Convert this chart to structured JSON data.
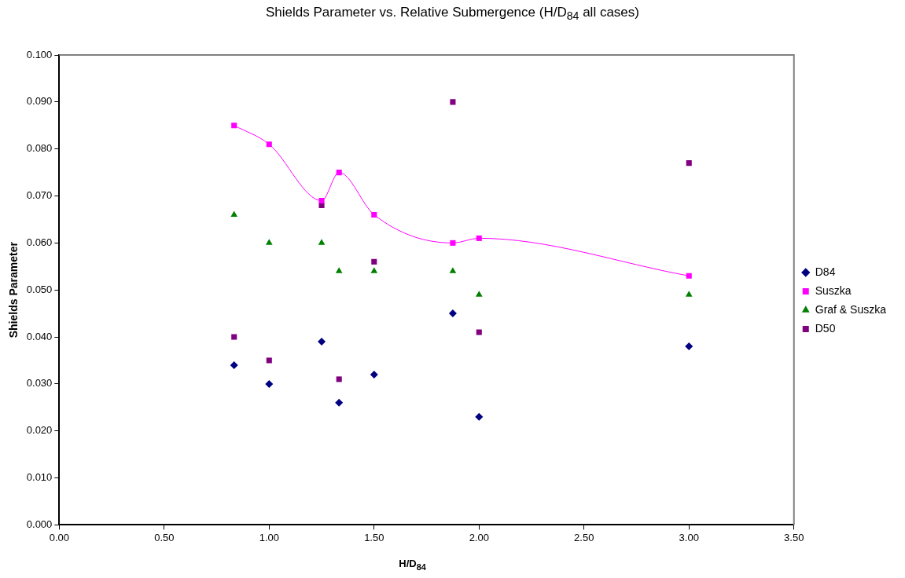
{
  "chart_data": {
    "type": "scatter",
    "title": "Shields Parameter vs. Relative Submergence (H/D$_{84}$ all cases)",
    "xlabel": "H/D$_{84}$",
    "ylabel": "Shields Parameter",
    "x": [
      0.833,
      1.0,
      1.25,
      1.333,
      1.5,
      1.875,
      2.0,
      3.0
    ],
    "series": [
      {
        "name": "D84",
        "marker": "diamond",
        "color": "#000080",
        "values": [
          0.034,
          0.03,
          0.039,
          0.026,
          0.032,
          0.045,
          0.023,
          0.038
        ]
      },
      {
        "name": "Suszka",
        "type": "line",
        "marker": "square",
        "color": "#ff00ff",
        "values": [
          0.085,
          0.081,
          0.069,
          0.075,
          0.066,
          0.06,
          0.061,
          0.053
        ]
      },
      {
        "name": "Graf & Suszka",
        "marker": "triangle",
        "color": "#008000",
        "values": [
          0.066,
          0.06,
          0.06,
          0.054,
          0.054,
          0.054,
          0.049,
          0.049
        ]
      },
      {
        "name": "D50",
        "marker": "square",
        "color": "#800080",
        "values": [
          0.04,
          0.035,
          0.068,
          0.031,
          0.056,
          0.09,
          0.041,
          0.077
        ]
      }
    ],
    "xlim": [
      0,
      3.5
    ],
    "xticks": [
      {
        "value": 0,
        "label": "0.00"
      },
      {
        "value": 0.5,
        "label": "0.50"
      },
      {
        "value": 1,
        "label": "1.00"
      },
      {
        "value": 1.5,
        "label": "1.50"
      },
      {
        "value": 2,
        "label": "2.00"
      },
      {
        "value": 2.5,
        "label": "2.50"
      },
      {
        "value": 3,
        "label": "3.00"
      },
      {
        "value": 3.5,
        "label": "3.50"
      }
    ],
    "ylim": [
      0,
      0.1
    ],
    "yticks": [
      {
        "value": 0,
        "label": "0.000"
      },
      {
        "value": 0.01,
        "label": "0.010"
      },
      {
        "value": 0.02,
        "label": "0.020"
      },
      {
        "value": 0.03,
        "label": "0.030"
      },
      {
        "value": 0.04,
        "label": "0.040"
      },
      {
        "value": 0.05,
        "label": "0.050"
      },
      {
        "value": 0.06,
        "label": "0.060"
      },
      {
        "value": 0.07,
        "label": "0.070"
      },
      {
        "value": 0.08,
        "label": "0.080"
      },
      {
        "value": 0.09,
        "label": "0.090"
      },
      {
        "value": 0.1,
        "label": "0.100"
      }
    ],
    "grid": false,
    "legend": "right"
  }
}
